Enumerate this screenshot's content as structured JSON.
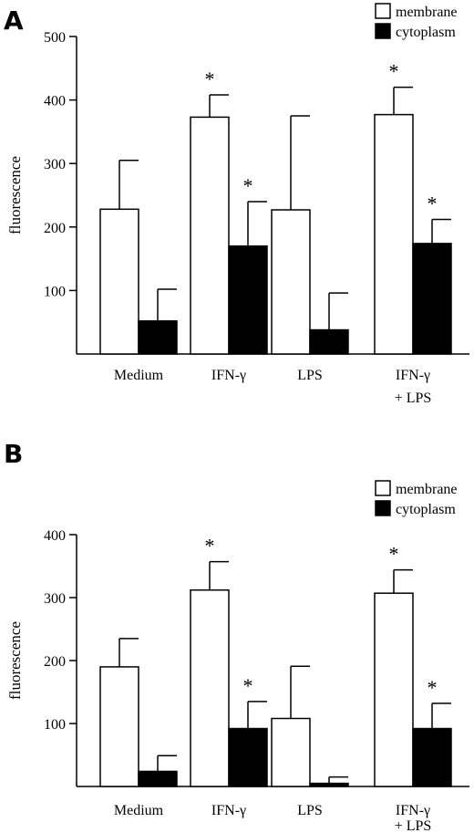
{
  "chart_data": [
    {
      "type": "bar",
      "panel": "A",
      "ylabel": "fluorescence",
      "ylim": [
        0,
        500
      ],
      "yticks": [
        100,
        200,
        300,
        400,
        500
      ],
      "categories": [
        [
          "Medium"
        ],
        [
          "IFN-γ"
        ],
        [
          "LPS"
        ],
        [
          "IFN-γ",
          "+ LPS"
        ]
      ],
      "legend": "top-right",
      "series": [
        {
          "name": "membrane",
          "color": "#ffffff",
          "values": [
            228,
            373,
            227,
            377
          ],
          "errors": [
            77,
            35,
            148,
            43
          ],
          "significant": [
            false,
            true,
            false,
            true
          ]
        },
        {
          "name": "cytoplasm",
          "color": "#000000",
          "values": [
            52,
            170,
            38,
            174
          ],
          "errors": [
            50,
            70,
            58,
            38
          ],
          "significant": [
            false,
            true,
            false,
            true
          ]
        }
      ],
      "significance_mark": "*"
    },
    {
      "type": "bar",
      "panel": "B",
      "ylabel": "fluorescence",
      "ylim": [
        0,
        400
      ],
      "yticks": [
        100,
        200,
        300,
        400
      ],
      "categories": [
        [
          "Medium"
        ],
        [
          "IFN-γ"
        ],
        [
          "LPS"
        ],
        [
          "IFN-γ",
          "+ LPS"
        ]
      ],
      "legend": "top-right",
      "series": [
        {
          "name": "membrane",
          "color": "#ffffff",
          "values": [
            190,
            312,
            108,
            307
          ],
          "errors": [
            45,
            45,
            83,
            37
          ],
          "significant": [
            false,
            true,
            false,
            true
          ]
        },
        {
          "name": "cytoplasm",
          "color": "#000000",
          "values": [
            24,
            92,
            5,
            92
          ],
          "errors": [
            25,
            43,
            10,
            40
          ],
          "significant": [
            false,
            true,
            false,
            true
          ]
        }
      ],
      "significance_mark": "*"
    }
  ]
}
